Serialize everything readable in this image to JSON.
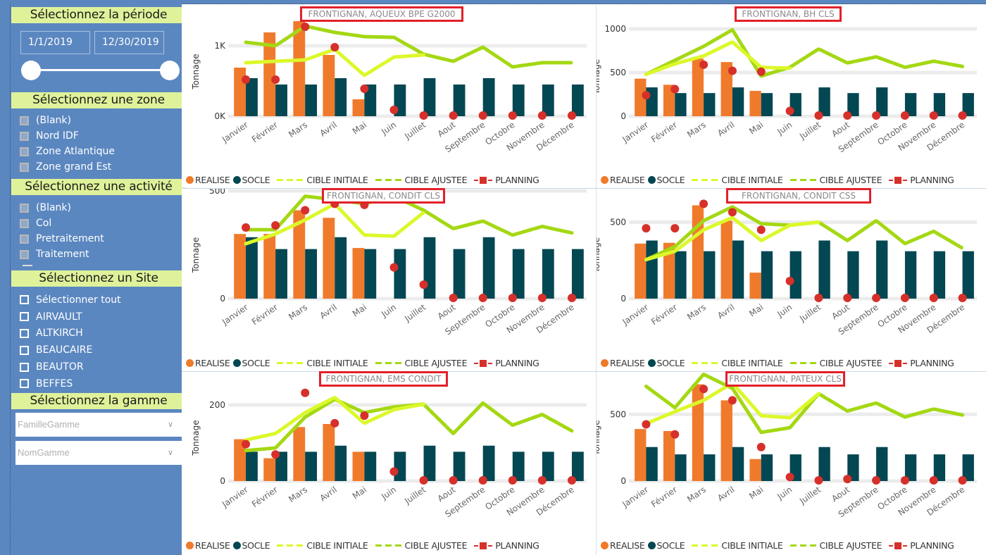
{
  "sidebar": {
    "periode": {
      "header": "Sélectionnez la période",
      "start_date": "1/1/2019",
      "end_date": "12/30/2019"
    },
    "zone": {
      "header": "Sélectionnez une zone",
      "items": [
        "(Blank)",
        "Nord IDF",
        "Zone Atlantique",
        "Zone grand Est"
      ]
    },
    "activite": {
      "header": "Sélectionnez une activité",
      "items": [
        "(Blank)",
        "Col",
        "Pretraitement",
        "Traitement"
      ]
    },
    "site": {
      "header": "Sélectionnez un Site",
      "items": [
        "Sélectionner tout",
        "AIRVAULT",
        "ALTKIRCH",
        "BEAUCAIRE",
        "BEAUTOR",
        "BEFFES"
      ]
    },
    "gamme": {
      "header": "Sélectionnez la gamme",
      "famille_placeholder": "FamilleGamme",
      "nom_placeholder": "NomGamme"
    }
  },
  "legend": {
    "realise": "REALISE",
    "socle": "SOCLE",
    "cible_initiale": "CIBLE INITIALE",
    "cible_ajustee": "CIBLE AJUSTEE",
    "planning": "PLANNING"
  },
  "colors": {
    "realise": "#f07a2b",
    "socle": "#034752",
    "cible_initiale": "#dcf82a",
    "cible_ajustee": "#a4d813",
    "planning": "#d6302a",
    "sidebar_bg": "#5b87c0",
    "header_bg": "#dff29a",
    "title_border": "#e3202a"
  },
  "chart_data": [
    {
      "type": "bar",
      "title": "FRONTIGNAN, AQUEUX BPE G2000",
      "xlabel": "",
      "ylabel": "Tonnage",
      "ylim": [
        0,
        1400
      ],
      "yticks": [
        0,
        1000
      ],
      "ytick_labels": [
        "0K",
        "1K"
      ],
      "grid": true,
      "legend_position": "bottom",
      "categories": [
        "Janvier",
        "Février",
        "Mars",
        "Avril",
        "Mai",
        "Juin",
        "Juillet",
        "Aout",
        "Septembre",
        "Octobre",
        "Novembre",
        "Décembre"
      ],
      "series": [
        {
          "name": "REALISE",
          "kind": "bar",
          "values": [
            690,
            1190,
            1350,
            870,
            240,
            null,
            null,
            null,
            null,
            null,
            null,
            null
          ]
        },
        {
          "name": "SOCLE",
          "kind": "bar",
          "values": [
            540,
            450,
            450,
            540,
            450,
            450,
            540,
            450,
            540,
            450,
            450,
            450
          ]
        },
        {
          "name": "CIBLE INITIALE",
          "kind": "line",
          "values": [
            760,
            780,
            800,
            950,
            580,
            840,
            870,
            null,
            null,
            null,
            null,
            null
          ]
        },
        {
          "name": "CIBLE AJUSTEE",
          "kind": "line",
          "values": [
            1050,
            1000,
            1280,
            1190,
            1130,
            1120,
            880,
            780,
            980,
            700,
            760,
            760
          ]
        },
        {
          "name": "PLANNING",
          "kind": "scatter",
          "values": [
            520,
            520,
            1270,
            980,
            390,
            90,
            0,
            0,
            0,
            0,
            0,
            0
          ]
        }
      ]
    },
    {
      "type": "bar",
      "title": "FRONTIGNAN, BH CLS",
      "xlabel": "",
      "ylabel": "Tonnage",
      "ylim": [
        0,
        1000
      ],
      "yticks": [
        0,
        500,
        1000
      ],
      "ytick_labels": [
        "0",
        "500",
        "1000"
      ],
      "grid": true,
      "legend_position": "bottom",
      "categories": [
        "Janvier",
        "Février",
        "Mars",
        "Avril",
        "Mai",
        "Juin",
        "Juillet",
        "Aout",
        "Septembre",
        "Octobre",
        "Novembre",
        "Décembre"
      ],
      "series": [
        {
          "name": "REALISE",
          "kind": "bar",
          "values": [
            430,
            360,
            660,
            620,
            290,
            null,
            null,
            null,
            null,
            null,
            null,
            null
          ]
        },
        {
          "name": "SOCLE",
          "kind": "bar",
          "values": [
            330,
            265,
            265,
            330,
            265,
            265,
            330,
            265,
            330,
            265,
            265,
            265
          ]
        },
        {
          "name": "CIBLE INITIALE",
          "kind": "line",
          "values": [
            480,
            600,
            690,
            850,
            560,
            550,
            null,
            null,
            null,
            null,
            null,
            null
          ]
        },
        {
          "name": "CIBLE AJUSTEE",
          "kind": "line",
          "values": [
            480,
            640,
            800,
            990,
            460,
            560,
            770,
            610,
            680,
            560,
            630,
            570
          ]
        },
        {
          "name": "PLANNING",
          "kind": "scatter",
          "values": [
            240,
            310,
            590,
            520,
            510,
            60,
            0,
            0,
            0,
            0,
            0,
            0
          ]
        }
      ]
    },
    {
      "type": "bar",
      "title": "FRONTIGNAN, CONDIT CLS",
      "xlabel": "",
      "ylabel": "Tonnage",
      "ylim": [
        0,
        500
      ],
      "yticks": [
        0,
        500
      ],
      "ytick_labels": [
        "0",
        "500"
      ],
      "grid": true,
      "legend_position": "bottom",
      "categories": [
        "Janvier",
        "Février",
        "Mars",
        "Avril",
        "Mai",
        "Juin",
        "Juillet",
        "Aout",
        "Septembre",
        "Octobre",
        "Novembre",
        "Décembre"
      ],
      "series": [
        {
          "name": "REALISE",
          "kind": "bar",
          "values": [
            300,
            300,
            410,
            375,
            235,
            null,
            null,
            null,
            null,
            null,
            null,
            null
          ]
        },
        {
          "name": "SOCLE",
          "kind": "bar",
          "values": [
            285,
            230,
            230,
            285,
            230,
            230,
            285,
            230,
            285,
            230,
            230,
            230
          ]
        },
        {
          "name": "CIBLE INITIALE",
          "kind": "line",
          "values": [
            255,
            300,
            365,
            440,
            295,
            290,
            400,
            null,
            null,
            null,
            null,
            null
          ]
        },
        {
          "name": "CIBLE AJUSTEE",
          "kind": "line",
          "values": [
            320,
            320,
            475,
            460,
            440,
            475,
            410,
            325,
            360,
            295,
            335,
            305
          ]
        },
        {
          "name": "PLANNING",
          "kind": "scatter",
          "values": [
            330,
            340,
            410,
            440,
            435,
            145,
            65,
            0,
            0,
            0,
            0,
            0
          ]
        }
      ]
    },
    {
      "type": "bar",
      "title": "FRONTIGNAN, CONDIT CSS",
      "xlabel": "",
      "ylabel": "Tonnage",
      "ylim": [
        0,
        700
      ],
      "yticks": [
        0,
        500
      ],
      "ytick_labels": [
        "0",
        "500"
      ],
      "grid": true,
      "legend_position": "bottom",
      "categories": [
        "Janvier",
        "Février",
        "Mars",
        "Avril",
        "Mai",
        "Juin",
        "Juillet",
        "Aout",
        "Septembre",
        "Octobre",
        "Novembre",
        "Décembre"
      ],
      "series": [
        {
          "name": "REALISE",
          "kind": "bar",
          "values": [
            360,
            365,
            610,
            510,
            170,
            null,
            null,
            null,
            null,
            null,
            null,
            null
          ]
        },
        {
          "name": "SOCLE",
          "kind": "bar",
          "values": [
            380,
            310,
            310,
            380,
            310,
            310,
            380,
            310,
            380,
            310,
            310,
            310
          ]
        },
        {
          "name": "CIBLE INITIALE",
          "kind": "line",
          "values": [
            255,
            310,
            450,
            530,
            380,
            480,
            500,
            null,
            null,
            null,
            null,
            null
          ]
        },
        {
          "name": "CIBLE AJUSTEE",
          "kind": "line",
          "values": [
            255,
            340,
            510,
            600,
            490,
            480,
            500,
            380,
            510,
            360,
            440,
            330
          ]
        },
        {
          "name": "PLANNING",
          "kind": "scatter",
          "values": [
            460,
            460,
            620,
            565,
            450,
            115,
            0,
            0,
            0,
            0,
            0,
            0
          ]
        }
      ]
    },
    {
      "type": "bar",
      "title": "FRONTIGNAN, EMS CONDIT",
      "xlabel": "",
      "ylabel": "Tonnage",
      "ylim": [
        0,
        250
      ],
      "yticks": [
        0,
        200
      ],
      "ytick_labels": [
        "0",
        "200"
      ],
      "grid": true,
      "legend_position": "bottom",
      "categories": [
        "Janvier",
        "Février",
        "Mars",
        "Avril",
        "Mai",
        "Juin",
        "Juillet",
        "Aout",
        "Septembre",
        "Octobre",
        "Novembre",
        "Décembre"
      ],
      "series": [
        {
          "name": "REALISE",
          "kind": "bar",
          "values": [
            110,
            60,
            142,
            150,
            77,
            null,
            null,
            null,
            null,
            null,
            null,
            null
          ]
        },
        {
          "name": "SOCLE",
          "kind": "bar",
          "values": [
            77,
            77,
            77,
            93,
            77,
            77,
            93,
            77,
            93,
            77,
            77,
            77
          ]
        },
        {
          "name": "CIBLE INITIALE",
          "kind": "line",
          "values": [
            108,
            125,
            180,
            220,
            152,
            188,
            202,
            null,
            null,
            null,
            null,
            null
          ]
        },
        {
          "name": "CIBLE AJUSTEE",
          "kind": "line",
          "values": [
            80,
            87,
            168,
            215,
            180,
            195,
            202,
            125,
            205,
            147,
            175,
            132
          ]
        },
        {
          "name": "PLANNING",
          "kind": "scatter",
          "values": [
            97,
            70,
            232,
            152,
            172,
            25,
            0,
            0,
            0,
            0,
            0,
            0
          ]
        }
      ]
    },
    {
      "type": "bar",
      "title": "FRONTIGNAN, PATEUX CLS",
      "xlabel": "",
      "ylabel": "Tonnage",
      "ylim": [
        0,
        850
      ],
      "yticks": [
        0,
        500
      ],
      "ytick_labels": [
        "0",
        "500"
      ],
      "grid": true,
      "legend_position": "bottom",
      "categories": [
        "Janvier",
        "Février",
        "Mars",
        "Avril",
        "Mai",
        "Juin",
        "Juillet",
        "Aout",
        "Septembre",
        "Octobre",
        "Novembre",
        "Décembre"
      ],
      "series": [
        {
          "name": "REALISE",
          "kind": "bar",
          "values": [
            390,
            375,
            725,
            605,
            165,
            null,
            null,
            null,
            null,
            null,
            null,
            null
          ]
        },
        {
          "name": "SOCLE",
          "kind": "bar",
          "values": [
            255,
            200,
            200,
            255,
            200,
            200,
            255,
            200,
            255,
            200,
            200,
            200
          ]
        },
        {
          "name": "CIBLE INITIALE",
          "kind": "line",
          "values": [
            430,
            520,
            605,
            735,
            490,
            475,
            655,
            null,
            null,
            null,
            null,
            null
          ]
        },
        {
          "name": "CIBLE AJUSTEE",
          "kind": "line",
          "values": [
            710,
            550,
            800,
            695,
            365,
            400,
            655,
            525,
            585,
            480,
            540,
            495
          ]
        },
        {
          "name": "PLANNING",
          "kind": "scatter",
          "values": [
            425,
            350,
            690,
            605,
            255,
            30,
            5,
            15,
            0,
            0,
            0,
            0
          ]
        }
      ]
    }
  ]
}
